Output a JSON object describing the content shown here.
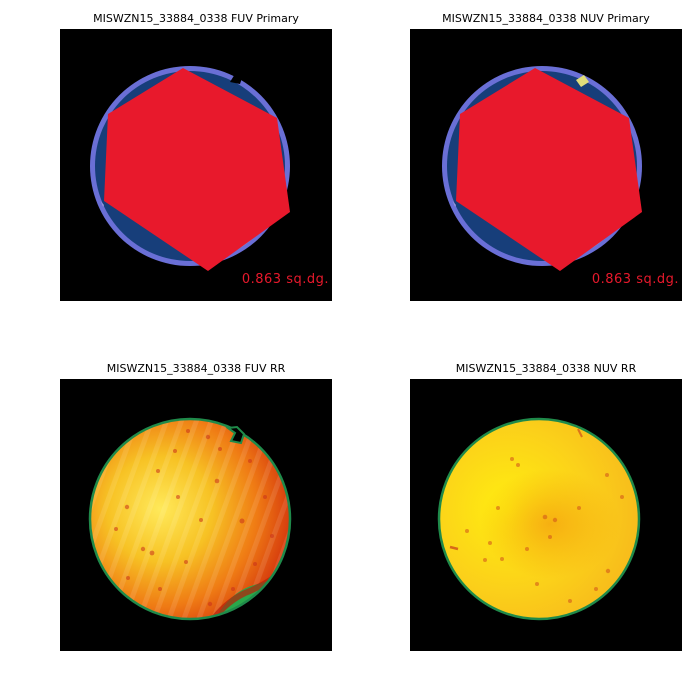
{
  "panels": [
    {
      "title": "MISWZN15_33884_0338 FUV Primary",
      "area_label": "0.863 sq.dg."
    },
    {
      "title": "MISWZN15_33884_0338 NUV Primary",
      "area_label": "0.863 sq.dg."
    },
    {
      "title": "MISWZN15_33884_0338 FUV RR"
    },
    {
      "title": "MISWZN15_33884_0338 NUV RR"
    }
  ],
  "colors": {
    "panel_background": "#000000",
    "ring": "#6a6fd6",
    "coverage_fill": "#173e7a",
    "primary_region": "#e8192c",
    "edge_lavender": "#9b98dc",
    "edge_yellow": "#e0dd7a",
    "area_label": "#e8192c",
    "rr_border": "#1f8a4a",
    "rr_low": "#2aa84a",
    "rr_mid": "#f4a010",
    "rr_high": "#d02008",
    "rr_nuv_center": "#ffee10"
  }
}
